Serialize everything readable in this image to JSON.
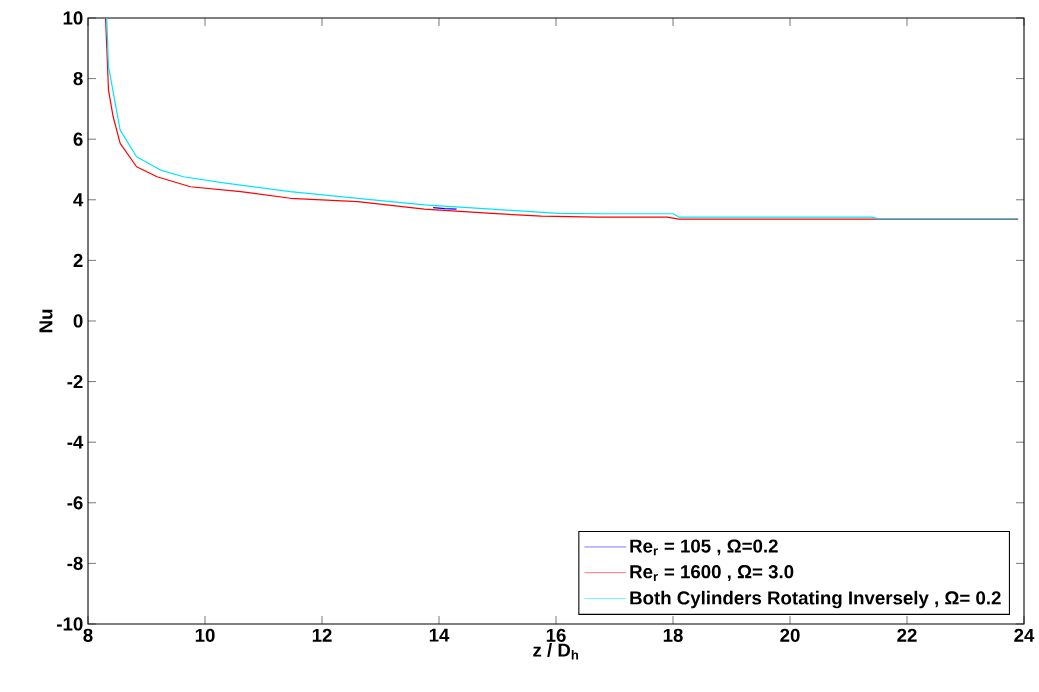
{
  "chart_data": {
    "type": "line",
    "xlabel": "z / D$_{h}$",
    "ylabel": "Nu",
    "xlim": [
      8,
      24
    ],
    "ylim": [
      -10,
      10
    ],
    "xticks": [
      8,
      10,
      12,
      14,
      16,
      18,
      20,
      22,
      24
    ],
    "yticks": [
      -10,
      -8,
      -6,
      -4,
      -2,
      0,
      2,
      4,
      6,
      8,
      10
    ],
    "grid": false,
    "legend": "bottom right",
    "marker": "none",
    "line_style": "solid",
    "series": [
      {
        "name": "Re$_{r}$ = 105 , Ω=0.2",
        "color": "#0000ff",
        "x": [
          13.9,
          14.1,
          14.3
        ],
        "values": [
          3.74,
          3.71,
          3.69
        ]
      },
      {
        "name": "Re$_{r}$ = 1600 , Ω= 3.0",
        "color": "#ff0000",
        "x": [
          8.3,
          8.35,
          8.43,
          8.55,
          8.83,
          9.18,
          9.75,
          10.61,
          11.46,
          12.61,
          13.75,
          14.9,
          15.75,
          16.7,
          17.9,
          18.1,
          23.9
        ],
        "values": [
          10,
          7.62,
          6.74,
          5.86,
          5.09,
          4.76,
          4.43,
          4.27,
          4.05,
          3.94,
          3.69,
          3.55,
          3.46,
          3.43,
          3.43,
          3.36,
          3.36
        ]
      },
      {
        "name": "Both Cylinders Rotating Inversely ,  Ω= 0.2",
        "color": "#00e5ff",
        "x": [
          8.32,
          8.35,
          8.55,
          8.83,
          9.24,
          9.63,
          10.32,
          11.46,
          12.61,
          13.75,
          14.9,
          16.04,
          16.8,
          18.0,
          18.1,
          21.4,
          21.5,
          23.9
        ],
        "values": [
          10,
          8.4,
          6.3,
          5.42,
          4.98,
          4.76,
          4.56,
          4.27,
          4.05,
          3.83,
          3.69,
          3.55,
          3.54,
          3.54,
          3.43,
          3.43,
          3.38,
          3.38
        ]
      }
    ]
  }
}
